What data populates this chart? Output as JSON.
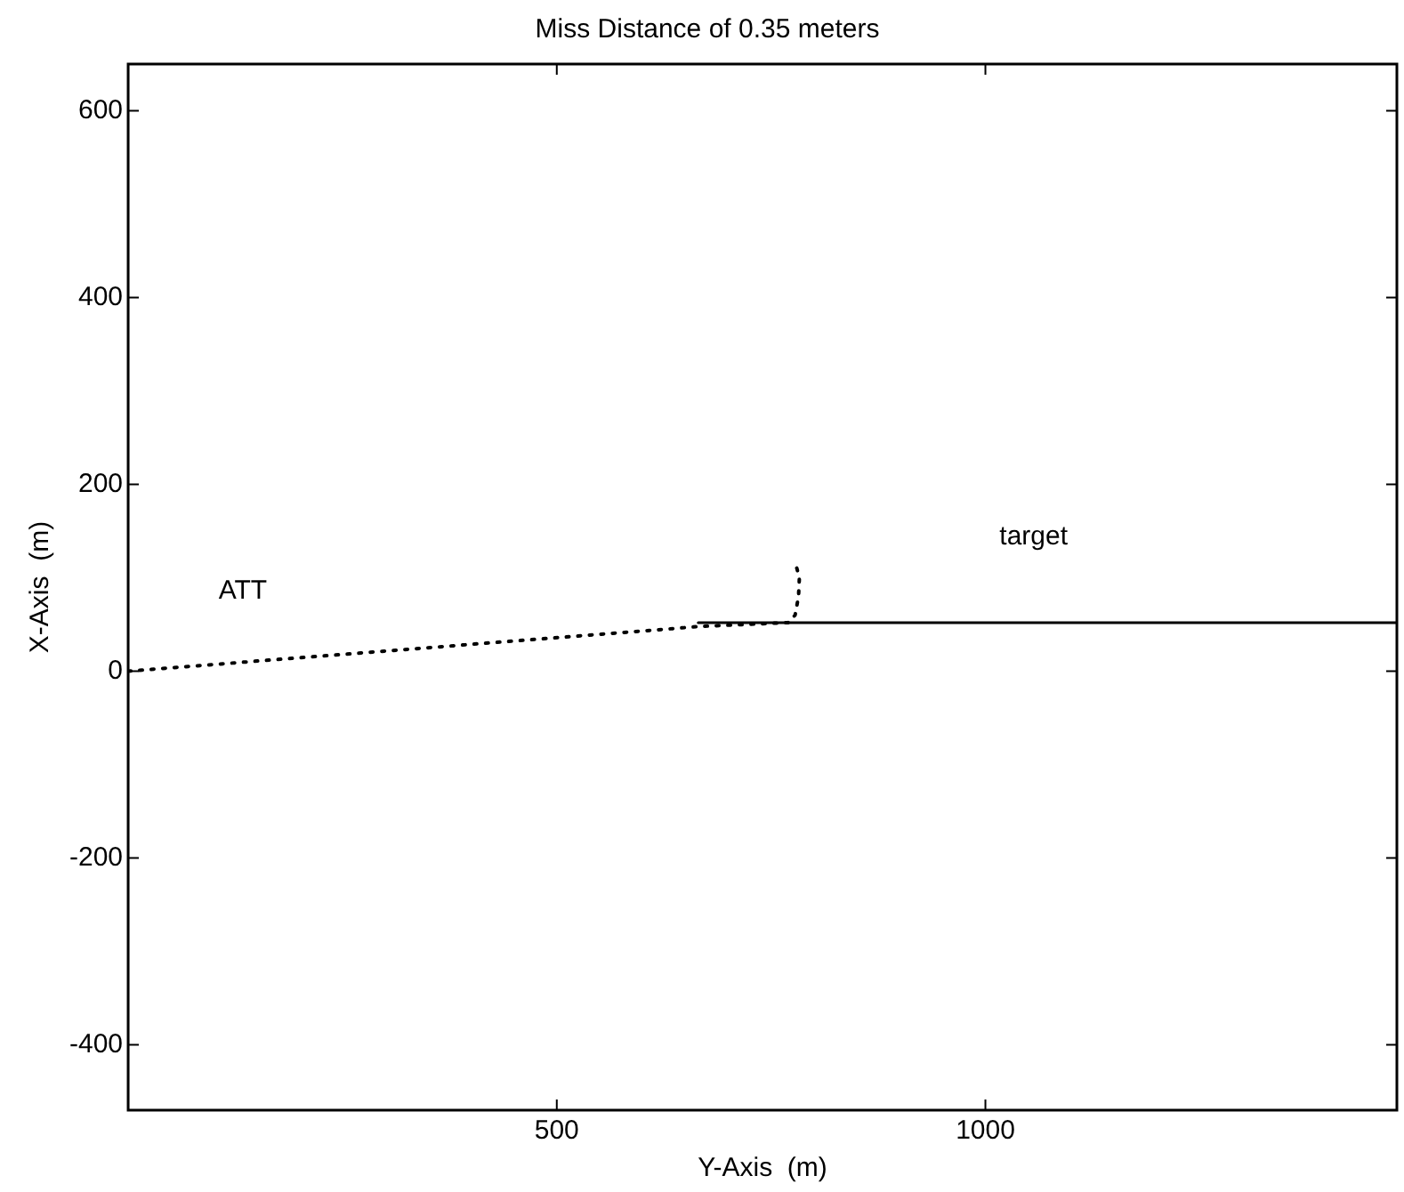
{
  "chart_data": {
    "type": "line",
    "title": "Miss Distance of 0.35 meters",
    "xlabel": "Y-Axis  (m)",
    "ylabel": "X-Axis  (m)",
    "xlim": [
      0,
      1480
    ],
    "xticks": [
      500,
      1000
    ],
    "ylim": [
      -470,
      650
    ],
    "yticks": [
      -400,
      -200,
      0,
      200,
      400,
      600
    ],
    "grid": false,
    "legend": false,
    "marker": "none",
    "series": [
      {
        "name": "ATT",
        "color": "#000000",
        "line_style": "dotted",
        "x": [
          0,
          669,
          770,
          778,
          782,
          783,
          778
        ],
        "values": [
          0,
          48,
          52,
          60,
          80,
          100,
          117
        ]
      },
      {
        "name": "target",
        "color": "#000000",
        "line_style": "solid",
        "x": [
          665,
          1480
        ],
        "values": [
          52,
          52
        ]
      }
    ]
  }
}
